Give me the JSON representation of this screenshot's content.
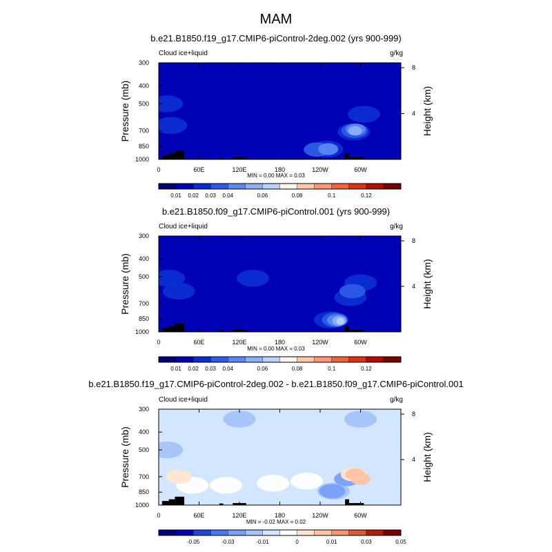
{
  "figure": {
    "title": "MAM"
  },
  "colors": {
    "field_scale": [
      "#00007a",
      "#0000b4",
      "#0a2dd2",
      "#2d5ae6",
      "#5a87f5",
      "#8caff5",
      "#b9d2fa",
      "#fff5eb",
      "#ffc8aa",
      "#ff9678",
      "#f0643c",
      "#dc3214",
      "#b40a00",
      "#780000"
    ],
    "diff_scale": [
      "#00007a",
      "#0000b4",
      "#1e46dc",
      "#4678f0",
      "#78a0f5",
      "#a5c3fa",
      "#d2e6ff",
      "#ffffff",
      "#ffe6d2",
      "#ffc3a5",
      "#f5966e",
      "#dc5a32",
      "#b4190a",
      "#780000"
    ],
    "land": "#000000"
  },
  "chart_data": [
    {
      "type": "heatmap",
      "title": "b.e21.B1850.f19_g17.CMIP6-piControl-2deg.002 (yrs 900-999)",
      "left_label": "Cloud ice+liquid",
      "right_label": "g/kg",
      "ylabel": "Pressure (mb)",
      "y2label": "Height (km)",
      "xticks": [
        "0",
        "60E",
        "120E",
        "180",
        "120W",
        "60W"
      ],
      "yticks": [
        "300",
        "400",
        "500",
        "700",
        "850",
        "1000"
      ],
      "y2ticks": [
        "8",
        "4"
      ],
      "minmax": "MIN =   0.00  MAX =   0.03",
      "colorbar_labels": [
        "0.01",
        "0.02",
        "0.03",
        "0.04",
        "0.06",
        "0.08",
        "0.1",
        "0.12"
      ],
      "background_level": 1,
      "features": [
        {
          "lon": 18,
          "p": 655,
          "level": 2
        },
        {
          "lon": 290,
          "p": 710,
          "level": 2
        },
        {
          "lon": 291,
          "p": 700,
          "level": 3
        },
        {
          "lon": 293,
          "p": 690,
          "level": 4
        },
        {
          "lon": 292,
          "p": 700,
          "level": 5
        },
        {
          "lon": 250,
          "p": 880,
          "level": 2
        },
        {
          "lon": 235,
          "p": 885,
          "level": 3
        },
        {
          "lon": 252,
          "p": 880,
          "level": 4
        },
        {
          "lon": 305,
          "p": 570,
          "level": 2
        },
        {
          "lon": 12,
          "p": 500,
          "level": 2
        }
      ],
      "land": [
        {
          "lon0": 5,
          "lon1": 15,
          "p": 950
        },
        {
          "lon0": 15,
          "lon1": 24,
          "p": 930
        },
        {
          "lon0": 24,
          "lon1": 38,
          "p": 900
        },
        {
          "lon0": 90,
          "lon1": 96,
          "p": 980
        },
        {
          "lon0": 110,
          "lon1": 130,
          "p": 975
        },
        {
          "lon0": 277,
          "lon1": 283,
          "p": 930
        },
        {
          "lon0": 283,
          "lon1": 305,
          "p": 975
        }
      ]
    },
    {
      "type": "heatmap",
      "title": "b.e21.B1850.f09_g17.CMIP6-piControl.001 (yrs 900-999)",
      "left_label": "Cloud ice+liquid",
      "right_label": "g/kg",
      "ylabel": "Pressure (mb)",
      "y2label": "Height (km)",
      "xticks": [
        "0",
        "60E",
        "120E",
        "180",
        "120W",
        "60W"
      ],
      "yticks": [
        "300",
        "400",
        "500",
        "700",
        "850",
        "1000"
      ],
      "y2ticks": [
        "8",
        "4"
      ],
      "minmax": "MIN =   0.00  MAX =   0.03",
      "colorbar_labels": [
        "0.01",
        "0.02",
        "0.03",
        "0.04",
        "0.06",
        "0.08",
        "0.1",
        "0.12"
      ],
      "background_level": 1,
      "features": [
        {
          "lon": 15,
          "p": 510,
          "level": 2
        },
        {
          "lon": 30,
          "p": 600,
          "level": 2
        },
        {
          "lon": 140,
          "p": 510,
          "level": 2
        },
        {
          "lon": 300,
          "p": 540,
          "level": 2
        },
        {
          "lon": 285,
          "p": 650,
          "level": 2
        },
        {
          "lon": 288,
          "p": 600,
          "level": 3
        },
        {
          "lon": 255,
          "p": 860,
          "level": 2
        },
        {
          "lon": 262,
          "p": 860,
          "level": 3
        },
        {
          "lon": 265,
          "p": 865,
          "level": 4
        },
        {
          "lon": 268,
          "p": 870,
          "level": 5
        },
        {
          "lon": 270,
          "p": 875,
          "level": 6
        }
      ],
      "land": [
        {
          "lon0": 5,
          "lon1": 15,
          "p": 950
        },
        {
          "lon0": 15,
          "lon1": 24,
          "p": 930
        },
        {
          "lon0": 24,
          "lon1": 38,
          "p": 900
        },
        {
          "lon0": 90,
          "lon1": 96,
          "p": 980
        },
        {
          "lon0": 110,
          "lon1": 130,
          "p": 975
        },
        {
          "lon0": 277,
          "lon1": 283,
          "p": 930
        },
        {
          "lon0": 283,
          "lon1": 305,
          "p": 975
        }
      ]
    },
    {
      "type": "heatmap",
      "title": "b.e21.B1850.f19_g17.CMIP6-piControl-2deg.002 - b.e21.B1850.f09_g17.CMIP6-piControl.001",
      "left_label": "Cloud ice+liquid",
      "right_label": "g/kg",
      "ylabel": "Pressure (mb)",
      "y2label": "Height (km)",
      "xticks": [
        "0",
        "60E",
        "120E",
        "180",
        "120W",
        "60W"
      ],
      "yticks": [
        "300",
        "400",
        "500",
        "700",
        "850",
        "1000"
      ],
      "y2ticks": [
        "8",
        "4"
      ],
      "minmax": "MIN =  -0.02  MAX =   0.02",
      "colorbar_labels": [
        "-0.05",
        "-0.03",
        "-0.01",
        "0",
        "0.01",
        "0.03",
        "0.05"
      ],
      "background_level": 6,
      "features": [
        {
          "lon": 50,
          "p": 780,
          "level": 7
        },
        {
          "lon": 100,
          "p": 780,
          "level": 7
        },
        {
          "lon": 170,
          "p": 760,
          "level": 7
        },
        {
          "lon": 220,
          "p": 740,
          "level": 7
        },
        {
          "lon": 30,
          "p": 700,
          "level": 8
        },
        {
          "lon": 120,
          "p": 340,
          "level": 5
        },
        {
          "lon": 12,
          "p": 500,
          "level": 5
        },
        {
          "lon": 260,
          "p": 840,
          "level": 5
        },
        {
          "lon": 258,
          "p": 840,
          "level": 4
        },
        {
          "lon": 280,
          "p": 720,
          "level": 4
        },
        {
          "lon": 290,
          "p": 680,
          "level": 8
        },
        {
          "lon": 292,
          "p": 680,
          "level": 9
        },
        {
          "lon": 300,
          "p": 720,
          "level": 9
        },
        {
          "lon": 300,
          "p": 340,
          "level": 5
        }
      ],
      "land": [
        {
          "lon0": 5,
          "lon1": 15,
          "p": 950
        },
        {
          "lon0": 15,
          "lon1": 24,
          "p": 930
        },
        {
          "lon0": 24,
          "lon1": 38,
          "p": 900
        },
        {
          "lon0": 90,
          "lon1": 96,
          "p": 980
        },
        {
          "lon0": 110,
          "lon1": 130,
          "p": 975
        },
        {
          "lon0": 277,
          "lon1": 283,
          "p": 930
        },
        {
          "lon0": 283,
          "lon1": 305,
          "p": 975
        }
      ]
    }
  ]
}
